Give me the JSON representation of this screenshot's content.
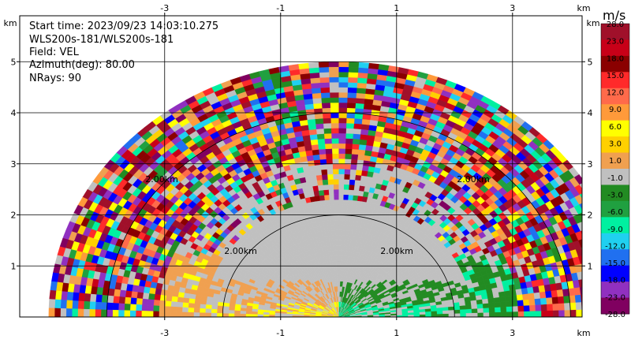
{
  "info": {
    "start_time": "Start time: 2023/09/23 14:03:10.275",
    "station": "WLS200s-181/WLS200s-181",
    "field": "Field: VEL",
    "azimuth": "Azimuth(deg): 80.00",
    "nrays": "NRays: 90"
  },
  "colorbar": {
    "unit": "m/s",
    "ticks": [
      "28.0",
      "23.0",
      "18.0",
      "15.0",
      "12.0",
      "9.0",
      "6.0",
      "3.0",
      "1.0",
      "-1.0",
      "-3.0",
      "-6.0",
      "-9.0",
      "-12.0",
      "-15.0",
      "-18.0",
      "-23.0",
      "-28.0"
    ],
    "colors": [
      "#a0102a",
      "#c80018",
      "#8a0000",
      "#ff2a2a",
      "#ff6a4a",
      "#ff9a3a",
      "#ffff00",
      "#ffd000",
      "#f0a050",
      "#c0c0c0",
      "#228b22",
      "#20a040",
      "#00f0a0",
      "#20d0f0",
      "#2070f0",
      "#0000ff",
      "#9030c0",
      "#800060"
    ]
  },
  "chart_data": {
    "type": "heatmap",
    "title": "",
    "xlabel": "km",
    "ylabel": "km",
    "xlim": [
      -5.5,
      4.2
    ],
    "ylim": [
      0,
      5.9
    ],
    "x_ticks": [
      "-3",
      "-1",
      "1",
      "3"
    ],
    "x_tick_values": [
      -3,
      -1,
      1,
      3
    ],
    "y_ticks": [
      "1",
      "2",
      "3",
      "4",
      "5"
    ],
    "y_tick_values": [
      1,
      2,
      3,
      4,
      5
    ],
    "axis_unit_label": "km",
    "range_rings_km": [
      2,
      4
    ],
    "ring_labels": [
      "2.00km",
      "2.00km",
      "2.00km",
      "2.00km"
    ],
    "max_range_km": 5.0,
    "field": "VEL",
    "grid": true
  }
}
